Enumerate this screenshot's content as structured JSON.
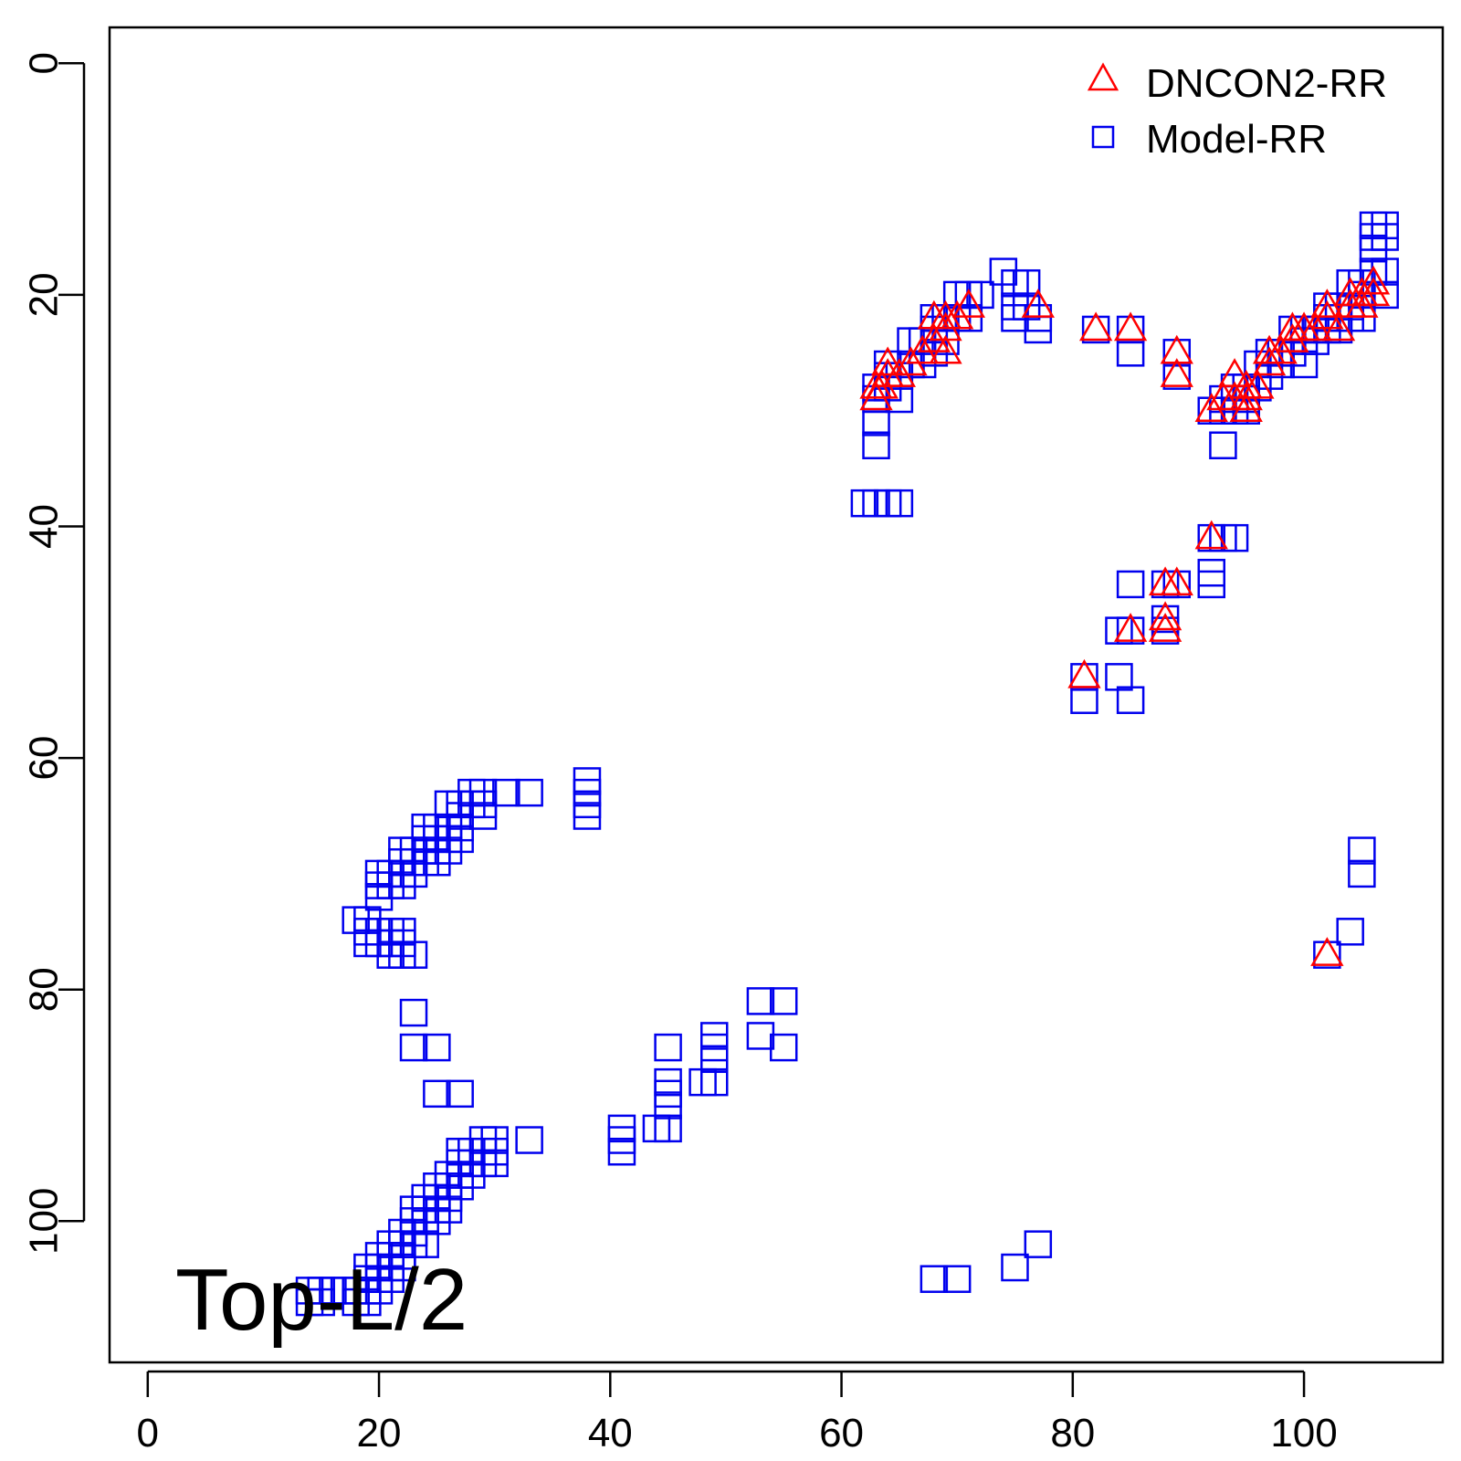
{
  "chart_data": {
    "type": "scatter",
    "x_ticks": [
      0,
      20,
      40,
      60,
      80,
      100
    ],
    "y_ticks": [
      0,
      20,
      40,
      60,
      80,
      100
    ],
    "xlim": [
      -3.3,
      112.0
    ],
    "ylim": [
      -3.1,
      112.2
    ],
    "y_reversed": true,
    "grid": false,
    "legend_position": "top-right",
    "annotation": "Top-L/2",
    "series": [
      {
        "name": "DNCON2-RR",
        "marker": "triangle",
        "color": "#ff0000",
        "points": [
          [
            63,
            29
          ],
          [
            63,
            28
          ],
          [
            63.5,
            28
          ],
          [
            64,
            27
          ],
          [
            64,
            26
          ],
          [
            65,
            27
          ],
          [
            66,
            26
          ],
          [
            67,
            25
          ],
          [
            68,
            24
          ],
          [
            68,
            22
          ],
          [
            69,
            25
          ],
          [
            69,
            23
          ],
          [
            69,
            22
          ],
          [
            70,
            22
          ],
          [
            71,
            21
          ],
          [
            77,
            21
          ],
          [
            82,
            23
          ],
          [
            85,
            23
          ],
          [
            89,
            25
          ],
          [
            89,
            27
          ],
          [
            92,
            41
          ],
          [
            81,
            53
          ],
          [
            85,
            49
          ],
          [
            88,
            45
          ],
          [
            89,
            45
          ],
          [
            88,
            48
          ],
          [
            88,
            49
          ],
          [
            92,
            30
          ],
          [
            93,
            29
          ],
          [
            94,
            27
          ],
          [
            94,
            29
          ],
          [
            95,
            29
          ],
          [
            95,
            28
          ],
          [
            95,
            30
          ],
          [
            96,
            28
          ],
          [
            97,
            26
          ],
          [
            97,
            25
          ],
          [
            98,
            25
          ],
          [
            99,
            24
          ],
          [
            99,
            23
          ],
          [
            100,
            23
          ],
          [
            101,
            23
          ],
          [
            102,
            22
          ],
          [
            102,
            21
          ],
          [
            103,
            23
          ],
          [
            104,
            21
          ],
          [
            104,
            20
          ],
          [
            105,
            21
          ],
          [
            105,
            20
          ],
          [
            106,
            20
          ],
          [
            106,
            19
          ],
          [
            102,
            77
          ]
        ]
      },
      {
        "name": "Model-RR",
        "marker": "square",
        "color": "#0000ee",
        "points": [
          [
            63,
            28
          ],
          [
            63,
            29
          ],
          [
            63,
            31
          ],
          [
            63,
            33
          ],
          [
            64,
            26
          ],
          [
            64,
            27
          ],
          [
            64,
            28
          ],
          [
            65,
            27
          ],
          [
            65,
            29
          ],
          [
            66,
            24
          ],
          [
            66,
            26
          ],
          [
            67,
            24
          ],
          [
            67,
            26
          ],
          [
            68,
            22
          ],
          [
            68,
            23
          ],
          [
            68,
            25
          ],
          [
            69,
            22
          ],
          [
            69,
            24
          ],
          [
            70,
            20
          ],
          [
            70,
            22
          ],
          [
            71,
            20
          ],
          [
            71,
            22
          ],
          [
            72,
            20
          ],
          [
            74,
            18
          ],
          [
            75,
            19
          ],
          [
            75,
            21
          ],
          [
            75,
            22
          ],
          [
            76,
            19
          ],
          [
            76,
            21
          ],
          [
            77,
            22
          ],
          [
            77,
            23
          ],
          [
            82,
            23
          ],
          [
            85,
            23
          ],
          [
            85,
            25
          ],
          [
            89,
            25
          ],
          [
            89,
            27
          ],
          [
            62,
            38
          ],
          [
            63,
            38
          ],
          [
            64,
            38
          ],
          [
            65,
            38
          ],
          [
            92,
            41
          ],
          [
            93,
            41
          ],
          [
            94,
            41
          ],
          [
            92,
            44
          ],
          [
            92,
            45
          ],
          [
            85,
            45
          ],
          [
            88,
            45
          ],
          [
            89,
            45
          ],
          [
            84,
            49
          ],
          [
            85,
            49
          ],
          [
            88,
            48
          ],
          [
            88,
            49
          ],
          [
            81,
            53
          ],
          [
            81,
            55
          ],
          [
            84,
            53
          ],
          [
            85,
            55
          ],
          [
            92,
            30
          ],
          [
            93,
            29
          ],
          [
            93,
            30
          ],
          [
            93,
            33
          ],
          [
            94,
            28
          ],
          [
            94,
            30
          ],
          [
            95,
            28
          ],
          [
            95,
            29
          ],
          [
            95,
            30
          ],
          [
            96,
            26
          ],
          [
            96,
            28
          ],
          [
            97,
            25
          ],
          [
            97,
            27
          ],
          [
            98,
            25
          ],
          [
            98,
            26
          ],
          [
            99,
            23
          ],
          [
            99,
            25
          ],
          [
            100,
            23
          ],
          [
            100,
            24
          ],
          [
            100,
            26
          ],
          [
            101,
            23
          ],
          [
            101,
            24
          ],
          [
            102,
            21
          ],
          [
            102,
            22
          ],
          [
            102,
            23
          ],
          [
            103,
            21
          ],
          [
            103,
            23
          ],
          [
            104,
            19
          ],
          [
            104,
            21
          ],
          [
            104,
            22
          ],
          [
            105,
            19
          ],
          [
            105,
            20
          ],
          [
            105,
            22
          ],
          [
            106,
            16
          ],
          [
            106,
            18
          ],
          [
            107,
            14
          ],
          [
            107,
            15
          ],
          [
            107,
            18
          ],
          [
            107,
            20
          ],
          [
            106,
            14
          ],
          [
            106,
            15
          ],
          [
            105,
            68
          ],
          [
            105,
            70
          ],
          [
            104,
            75
          ],
          [
            102,
            77
          ],
          [
            38,
            62
          ],
          [
            38,
            63
          ],
          [
            38,
            64
          ],
          [
            38,
            65
          ],
          [
            31,
            63
          ],
          [
            33,
            63
          ],
          [
            29,
            63
          ],
          [
            29,
            64
          ],
          [
            29,
            65
          ],
          [
            28,
            63
          ],
          [
            28,
            64
          ],
          [
            27,
            64
          ],
          [
            27,
            65
          ],
          [
            27,
            66
          ],
          [
            27,
            67
          ],
          [
            26,
            64
          ],
          [
            26,
            66
          ],
          [
            26,
            67
          ],
          [
            26,
            68
          ],
          [
            25,
            66
          ],
          [
            25,
            67
          ],
          [
            25,
            68
          ],
          [
            25,
            69
          ],
          [
            24,
            66
          ],
          [
            24,
            67
          ],
          [
            24,
            68
          ],
          [
            24,
            69
          ],
          [
            23,
            68
          ],
          [
            23,
            69
          ],
          [
            23,
            70
          ],
          [
            22,
            68
          ],
          [
            22,
            69
          ],
          [
            22,
            70
          ],
          [
            22,
            71
          ],
          [
            21,
            70
          ],
          [
            21,
            71
          ],
          [
            20,
            70
          ],
          [
            20,
            71
          ],
          [
            20,
            72
          ],
          [
            18,
            74
          ],
          [
            19,
            74
          ],
          [
            19,
            75
          ],
          [
            19,
            76
          ],
          [
            20,
            75
          ],
          [
            20,
            76
          ],
          [
            21,
            75
          ],
          [
            21,
            76
          ],
          [
            21,
            77
          ],
          [
            22,
            75
          ],
          [
            22,
            76
          ],
          [
            22,
            77
          ],
          [
            23,
            77
          ],
          [
            23,
            82
          ],
          [
            23,
            85
          ],
          [
            25,
            85
          ],
          [
            25,
            89
          ],
          [
            27,
            89
          ],
          [
            53,
            81
          ],
          [
            55,
            81
          ],
          [
            53,
            84
          ],
          [
            55,
            85
          ],
          [
            45,
            85
          ],
          [
            45,
            88
          ],
          [
            45,
            89
          ],
          [
            45,
            90
          ],
          [
            49,
            84
          ],
          [
            49,
            85
          ],
          [
            49,
            86
          ],
          [
            48,
            88
          ],
          [
            49,
            88
          ],
          [
            41,
            92
          ],
          [
            41,
            93
          ],
          [
            41,
            94
          ],
          [
            44,
            92
          ],
          [
            45,
            92
          ],
          [
            33,
            93
          ],
          [
            30,
            93
          ],
          [
            30,
            94
          ],
          [
            30,
            95
          ],
          [
            29,
            93
          ],
          [
            29,
            94
          ],
          [
            29,
            95
          ],
          [
            28,
            94
          ],
          [
            28,
            95
          ],
          [
            28,
            96
          ],
          [
            27,
            94
          ],
          [
            27,
            95
          ],
          [
            27,
            96
          ],
          [
            27,
            97
          ],
          [
            26,
            96
          ],
          [
            26,
            97
          ],
          [
            26,
            98
          ],
          [
            26,
            99
          ],
          [
            25,
            97
          ],
          [
            25,
            98
          ],
          [
            25,
            99
          ],
          [
            25,
            100
          ],
          [
            24,
            98
          ],
          [
            24,
            99
          ],
          [
            24,
            100
          ],
          [
            24,
            102
          ],
          [
            23,
            99
          ],
          [
            23,
            100
          ],
          [
            23,
            101
          ],
          [
            23,
            102
          ],
          [
            22,
            101
          ],
          [
            22,
            102
          ],
          [
            22,
            103
          ],
          [
            22,
            104
          ],
          [
            21,
            102
          ],
          [
            21,
            103
          ],
          [
            21,
            104
          ],
          [
            21,
            105
          ],
          [
            20,
            103
          ],
          [
            20,
            104
          ],
          [
            20,
            105
          ],
          [
            20,
            106
          ],
          [
            19,
            104
          ],
          [
            19,
            105
          ],
          [
            19,
            106
          ],
          [
            19,
            107
          ],
          [
            18,
            106
          ],
          [
            18,
            107
          ],
          [
            17,
            106
          ],
          [
            16,
            106
          ],
          [
            15,
            106
          ],
          [
            15,
            107
          ],
          [
            14,
            106
          ],
          [
            14,
            107
          ],
          [
            77,
            102
          ],
          [
            75,
            104
          ],
          [
            68,
            105
          ],
          [
            70,
            105
          ]
        ]
      }
    ]
  }
}
